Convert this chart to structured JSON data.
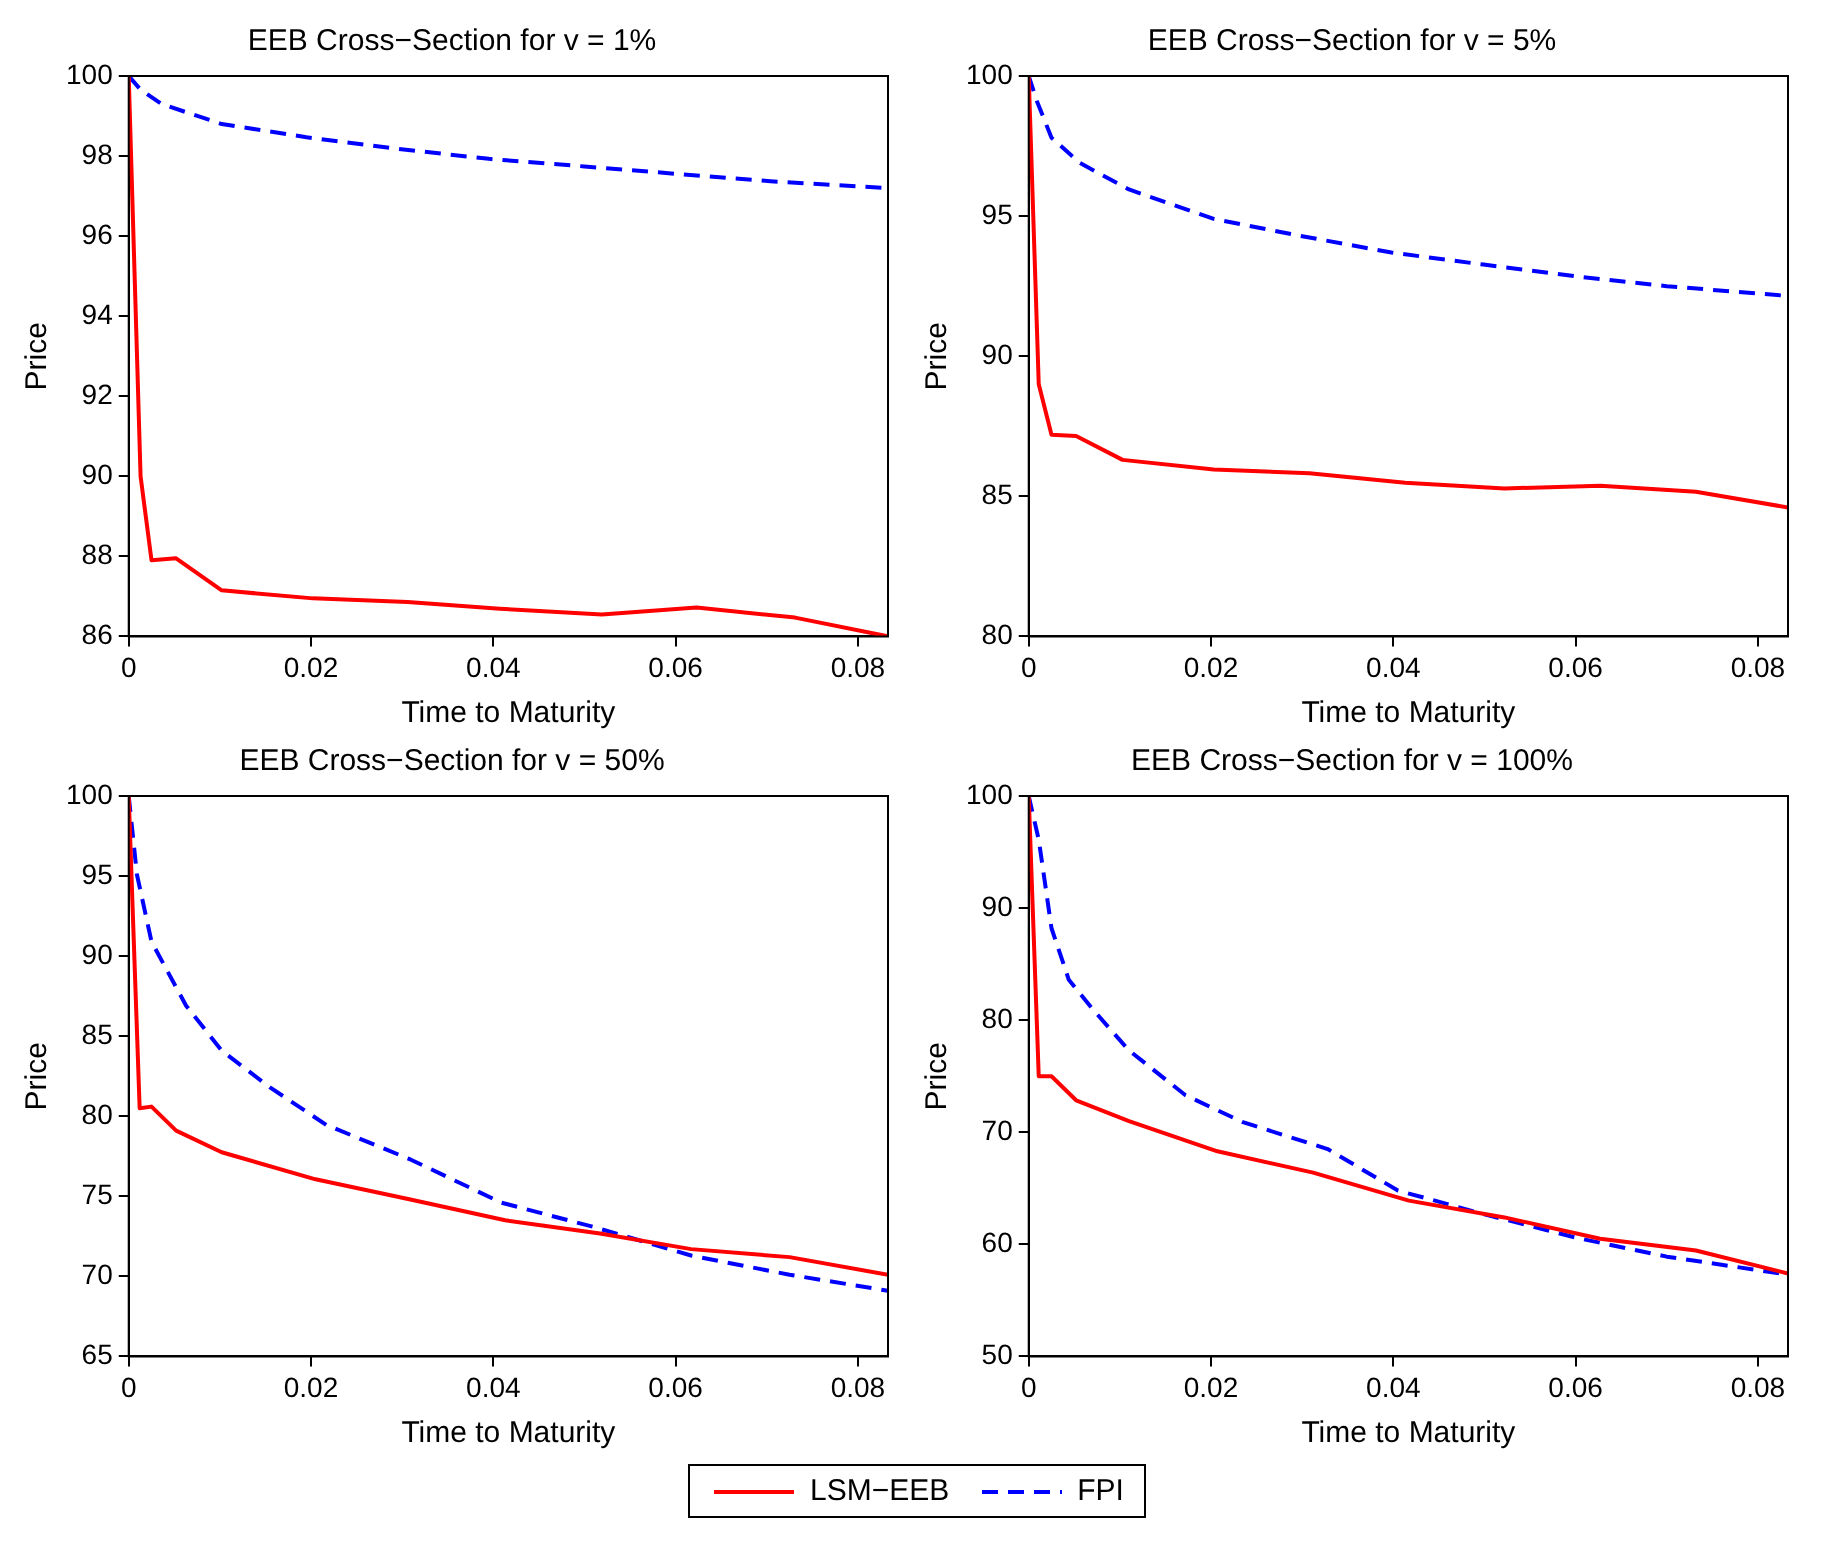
{
  "chart_data": [
    {
      "type": "line",
      "title": "EEB Cross−Section for v = 1%",
      "xlabel": "Time to Maturity",
      "ylabel": "Price",
      "xlim": [
        0,
        0.0833
      ],
      "xticks": [
        0,
        0.02,
        0.04,
        0.06,
        0.08
      ],
      "ylim": [
        86,
        100
      ],
      "yticks": [
        86,
        88,
        90,
        92,
        94,
        96,
        98,
        100
      ],
      "grid": false,
      "legend": "bottom",
      "marker": "none",
      "series": [
        {
          "name": "LSM−EEB",
          "color": "#ff0000",
          "line_style": "solid",
          "x": [
            0,
            0.0013,
            0.0025,
            0.0052,
            0.0102,
            0.0202,
            0.0306,
            0.0407,
            0.0519,
            0.0623,
            0.0731,
            0.0833
          ],
          "values": [
            100,
            90.0,
            87.9,
            87.95,
            87.15,
            86.95,
            86.86,
            86.69,
            86.55,
            86.72,
            86.47,
            86.0
          ]
        },
        {
          "name": "FPI",
          "color": "#0000ff",
          "line_style": "dashed",
          "x": [
            0,
            0.0013,
            0.0036,
            0.0102,
            0.0195,
            0.0295,
            0.0395,
            0.05,
            0.0604,
            0.0704,
            0.0833
          ],
          "values": [
            100,
            99.66,
            99.3,
            98.8,
            98.47,
            98.18,
            97.93,
            97.74,
            97.55,
            97.37,
            97.2
          ]
        }
      ]
    },
    {
      "type": "line",
      "title": "EEB Cross−Section for v = 5%",
      "xlabel": "Time to Maturity",
      "ylabel": "Price",
      "xlim": [
        0,
        0.0833
      ],
      "xticks": [
        0,
        0.02,
        0.04,
        0.06,
        0.08
      ],
      "ylim": [
        80,
        100
      ],
      "yticks": [
        80,
        85,
        90,
        95,
        100
      ],
      "grid": false,
      "legend": "bottom",
      "marker": "none",
      "series": [
        {
          "name": "LSM−EEB",
          "color": "#ff0000",
          "line_style": "solid",
          "x": [
            0,
            0.0011,
            0.0025,
            0.0052,
            0.0103,
            0.0203,
            0.0308,
            0.0413,
            0.0522,
            0.0627,
            0.0732,
            0.0833
          ],
          "values": [
            100,
            89.0,
            87.2,
            87.15,
            86.3,
            85.96,
            85.82,
            85.48,
            85.28,
            85.38,
            85.16,
            84.6
          ]
        },
        {
          "name": "FPI",
          "color": "#0000ff",
          "line_style": "dashed",
          "x": [
            0,
            0.0009,
            0.0025,
            0.0056,
            0.011,
            0.0203,
            0.0297,
            0.0398,
            0.0499,
            0.06,
            0.07,
            0.0833
          ],
          "values": [
            100,
            99.1,
            97.8,
            96.9,
            95.95,
            94.9,
            94.3,
            93.7,
            93.27,
            92.85,
            92.5,
            92.15
          ]
        }
      ]
    },
    {
      "type": "line",
      "title": "EEB Cross−Section for v = 50%",
      "xlabel": "Time to Maturity",
      "ylabel": "Price",
      "xlim": [
        0,
        0.0833
      ],
      "xticks": [
        0,
        0.02,
        0.04,
        0.06,
        0.08
      ],
      "ylim": [
        65,
        100
      ],
      "yticks": [
        65,
        70,
        75,
        80,
        85,
        90,
        95,
        100
      ],
      "grid": false,
      "legend": "bottom",
      "marker": "none",
      "series": [
        {
          "name": "LSM−EEB",
          "color": "#ff0000",
          "line_style": "solid",
          "x": [
            0,
            0.0012,
            0.0025,
            0.0052,
            0.0102,
            0.0205,
            0.0309,
            0.0413,
            0.0517,
            0.0617,
            0.0725,
            0.0833
          ],
          "values": [
            100,
            80.5,
            80.6,
            79.1,
            77.75,
            76.06,
            74.8,
            73.5,
            72.67,
            71.7,
            71.2,
            70.1
          ]
        },
        {
          "name": "FPI",
          "color": "#0000ff",
          "line_style": "dashed",
          "x": [
            0,
            0.0009,
            0.0025,
            0.0063,
            0.0102,
            0.0155,
            0.0217,
            0.0309,
            0.0409,
            0.0509,
            0.0617,
            0.0725,
            0.0833
          ],
          "values": [
            100,
            95.1,
            90.9,
            86.9,
            84.1,
            81.8,
            79.45,
            77.3,
            74.6,
            73.1,
            71.3,
            70.1,
            69.1
          ]
        }
      ]
    },
    {
      "type": "line",
      "title": "EEB Cross−Section for v = 100%",
      "xlabel": "Time to Maturity",
      "ylabel": "Price",
      "xlim": [
        0,
        0.0833
      ],
      "xticks": [
        0,
        0.02,
        0.04,
        0.06,
        0.08
      ],
      "ylim": [
        50,
        100
      ],
      "yticks": [
        50,
        60,
        70,
        80,
        90,
        100
      ],
      "grid": false,
      "legend": "bottom",
      "marker": "none",
      "series": [
        {
          "name": "LSM−EEB",
          "color": "#ff0000",
          "line_style": "solid",
          "x": [
            0,
            0.0011,
            0.0025,
            0.0052,
            0.011,
            0.0207,
            0.0312,
            0.0417,
            0.0522,
            0.0627,
            0.0732,
            0.0833
          ],
          "values": [
            100,
            75.0,
            75.0,
            72.85,
            71.0,
            68.3,
            66.4,
            63.9,
            62.4,
            60.5,
            59.45,
            57.4
          ]
        },
        {
          "name": "FPI",
          "color": "#0000ff",
          "line_style": "dashed",
          "x": [
            0,
            0.0011,
            0.0025,
            0.0044,
            0.0071,
            0.011,
            0.0172,
            0.0235,
            0.0328,
            0.0405,
            0.0499,
            0.06,
            0.07,
            0.0833
          ],
          "values": [
            100,
            96.1,
            88.2,
            83.6,
            80.9,
            77.3,
            73.3,
            70.9,
            68.5,
            64.8,
            62.7,
            60.6,
            58.9,
            57.3
          ]
        }
      ]
    }
  ]
}
